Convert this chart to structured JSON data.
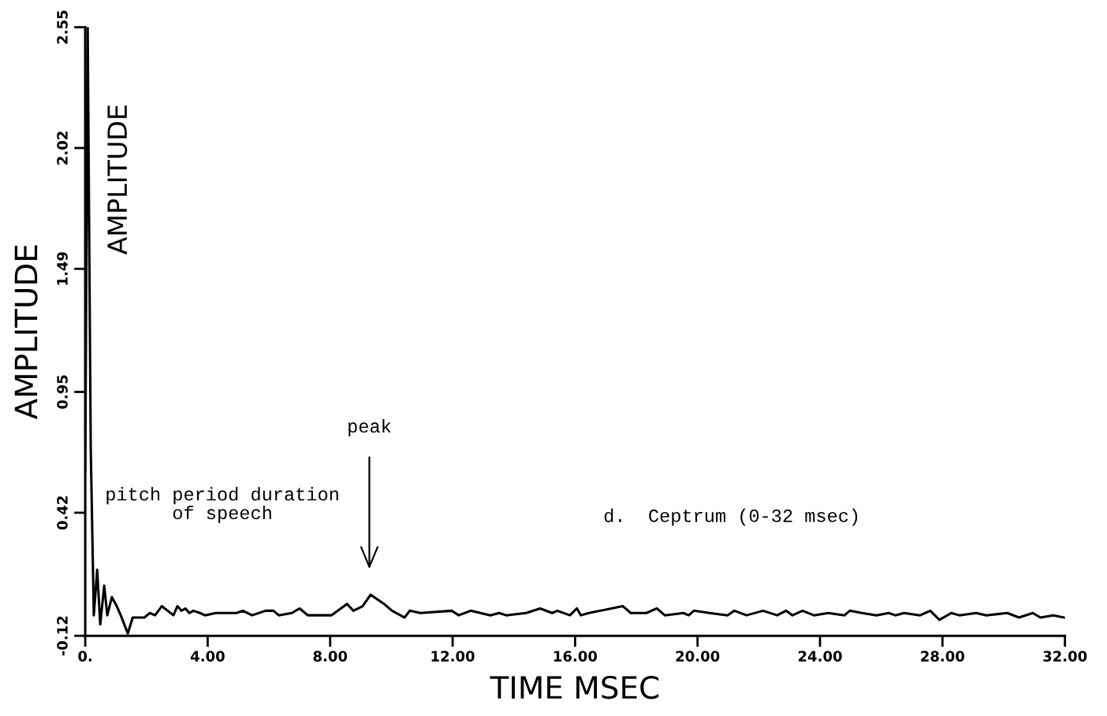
{
  "chart_data": {
    "type": "line",
    "xlabel": "TIME MSEC",
    "ylabel": "AMPLITUDE",
    "annotations": [
      "AMPLITUDE",
      "pitch period duration\nof speech",
      "peak",
      "d.  Ceptrum (0-32 msec)"
    ],
    "xlim": [
      0,
      32
    ],
    "ylim": [
      -0.12,
      2.55
    ],
    "xticks": [
      {
        "value": 0,
        "label": "0."
      },
      {
        "value": 4,
        "label": "4.00"
      },
      {
        "value": 8,
        "label": "8.00"
      },
      {
        "value": 12,
        "label": "12.00"
      },
      {
        "value": 16,
        "label": "16.00"
      },
      {
        "value": 20,
        "label": "20.00"
      },
      {
        "value": 24,
        "label": "24.00"
      },
      {
        "value": 28,
        "label": "28.00"
      },
      {
        "value": 32,
        "label": "32.00"
      }
    ],
    "yticks": [
      -0.12,
      0.42,
      0.95,
      1.49,
      2.02,
      2.55
    ],
    "grid": false,
    "legend": false,
    "marker": "none",
    "line_style": "solid",
    "series": [
      {
        "color": "#000000",
        "x": [
          0,
          0.08,
          0.18,
          0.28,
          0.39,
          0.49,
          0.62,
          0.72,
          0.87,
          1.03,
          1.16,
          1.39,
          1.55,
          1.93,
          2.11,
          2.28,
          2.5,
          2.88,
          3.01,
          3.14,
          3.27,
          3.4,
          3.53,
          3.75,
          3.91,
          4.26,
          4.94,
          5.15,
          5.45,
          5.89,
          6.15,
          6.32,
          6.75,
          7.0,
          7.27,
          8.04,
          8.55,
          8.76,
          9.06,
          9.32,
          9.76,
          10.02,
          10.43,
          10.6,
          10.95,
          11.97,
          12.2,
          12.59,
          13.23,
          13.52,
          13.75,
          14.4,
          14.86,
          15.25,
          15.42,
          15.83,
          16.06,
          16.19,
          16.45,
          17.56,
          17.82,
          18.33,
          18.67,
          18.93,
          19.54,
          19.71,
          19.88,
          20.39,
          20.98,
          21.2,
          21.6,
          22.14,
          22.6,
          22.89,
          23.1,
          23.43,
          23.8,
          24.27,
          24.8,
          24.97,
          25.37,
          25.85,
          26.24,
          26.46,
          26.75,
          27.27,
          27.6,
          27.9,
          28.29,
          28.55,
          29.1,
          29.43,
          30.12,
          30.5,
          30.95,
          31.2,
          31.62,
          31.98
        ],
        "values": [
          0.6,
          2.55,
          0.7,
          -0.03,
          0.17,
          -0.07,
          0.1,
          -0.03,
          0.05,
          0.01,
          -0.03,
          -0.11,
          -0.04,
          -0.04,
          -0.02,
          -0.03,
          0.01,
          -0.03,
          0.01,
          -0.01,
          0.0,
          -0.02,
          -0.01,
          -0.02,
          -0.03,
          -0.02,
          -0.02,
          -0.01,
          -0.03,
          -0.01,
          -0.01,
          -0.03,
          -0.02,
          0.0,
          -0.03,
          -0.03,
          0.02,
          -0.01,
          0.01,
          0.06,
          0.02,
          -0.01,
          -0.04,
          -0.01,
          -0.02,
          -0.01,
          -0.03,
          -0.01,
          -0.03,
          -0.02,
          -0.03,
          -0.02,
          0.0,
          -0.02,
          -0.01,
          -0.03,
          0.0,
          -0.03,
          -0.02,
          0.01,
          -0.02,
          -0.02,
          0.0,
          -0.03,
          -0.02,
          -0.03,
          -0.01,
          -0.02,
          -0.03,
          -0.01,
          -0.03,
          -0.01,
          -0.03,
          -0.01,
          -0.03,
          -0.01,
          -0.03,
          -0.02,
          -0.03,
          -0.01,
          -0.02,
          -0.03,
          -0.02,
          -0.03,
          -0.02,
          -0.03,
          -0.01,
          -0.05,
          -0.02,
          -0.03,
          -0.02,
          -0.03,
          -0.02,
          -0.04,
          -0.02,
          -0.04,
          -0.03,
          -0.04
        ]
      }
    ]
  }
}
